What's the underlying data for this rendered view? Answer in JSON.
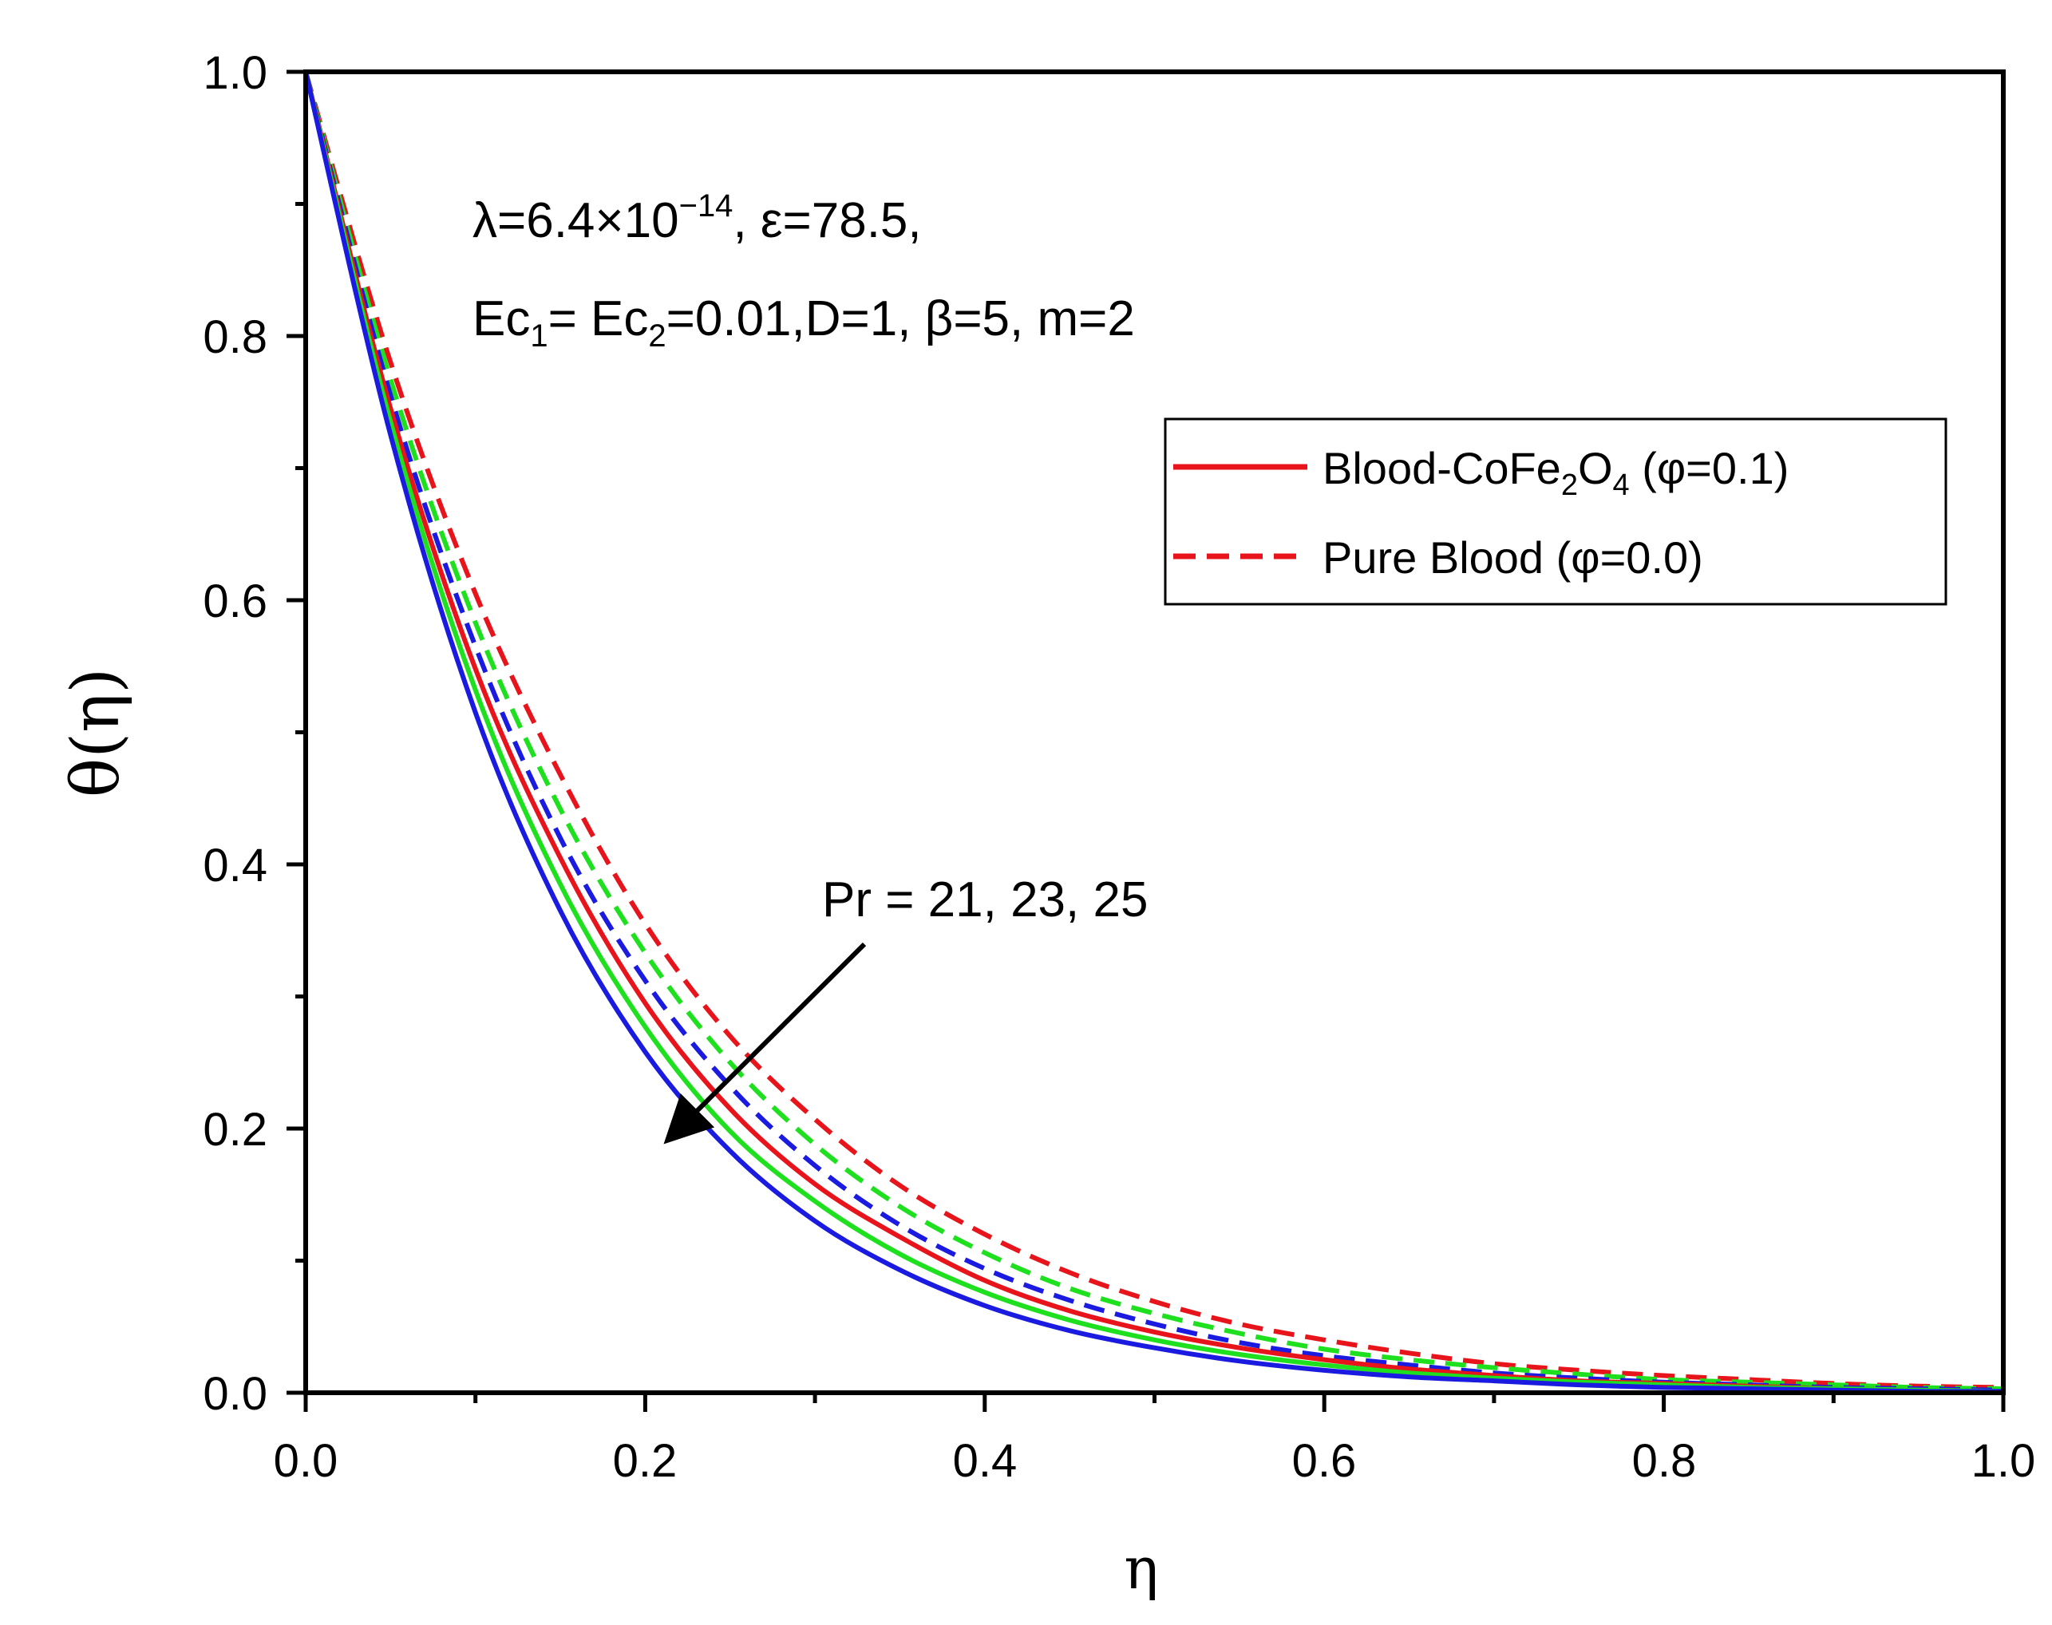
{
  "chart_data": {
    "type": "line",
    "xlabel": "η",
    "ylabel": "θ(η)",
    "xlim": [
      0,
      1
    ],
    "ylim": [
      0,
      1
    ],
    "xticks": [
      0.0,
      0.2,
      0.4,
      0.6,
      0.8,
      1.0
    ],
    "yticks": [
      0.0,
      0.2,
      0.4,
      0.6,
      0.8,
      1.0
    ],
    "xtick_labels": [
      "0.0",
      "0.2",
      "0.4",
      "0.6",
      "0.8",
      "1.0"
    ],
    "ytick_labels": [
      "0.0",
      "0.2",
      "0.4",
      "0.6",
      "0.8",
      "1.0"
    ],
    "grid": false,
    "parameters": {
      "line1": {
        "lambda_prefix": "λ=6.4×10",
        "lambda_exp": "−14",
        "eps": ", ε=78.5,"
      },
      "line2": {
        "ec": "Ec",
        "ec1_sub": "1",
        "mid": "= Ec",
        "ec2_sub": "2",
        "rest": "=0.01,D=1, β=5,  m=2"
      }
    },
    "arrow_label": "Pr = 21, 23, 25",
    "legend": {
      "placement": "top-right",
      "entries": [
        {
          "style": "solid",
          "color": "#e8141b",
          "label_parts": [
            "Blood-CoFe",
            "2",
            "O",
            "4",
            " (φ=0.1)"
          ]
        },
        {
          "style": "dashed",
          "color": "#e8141b",
          "label": "Pure Blood (φ=0.0)"
        }
      ]
    },
    "x": [
      0.0,
      0.05,
      0.1,
      0.15,
      0.2,
      0.25,
      0.3,
      0.35,
      0.4,
      0.45,
      0.5,
      0.55,
      0.6,
      0.65,
      0.7,
      0.75,
      0.8,
      0.85,
      0.9,
      0.95,
      1.0
    ],
    "series": [
      {
        "name": "Blood-CoFe2O4 (φ=0.1), Pr=21",
        "color": "#e8141b",
        "style": "solid",
        "values": [
          1.0,
          0.745,
          0.548,
          0.405,
          0.295,
          0.215,
          0.158,
          0.118,
          0.085,
          0.062,
          0.046,
          0.034,
          0.025,
          0.018,
          0.013,
          0.009,
          0.007,
          0.005,
          0.003,
          0.002,
          0.001
        ]
      },
      {
        "name": "Blood-CoFe2O4 (φ=0.1), Pr=23",
        "color": "#1fe01f",
        "style": "solid",
        "values": [
          1.0,
          0.735,
          0.532,
          0.385,
          0.277,
          0.198,
          0.145,
          0.105,
          0.076,
          0.055,
          0.04,
          0.029,
          0.021,
          0.015,
          0.011,
          0.008,
          0.006,
          0.004,
          0.003,
          0.002,
          0.001
        ]
      },
      {
        "name": "Blood-CoFe2O4 (φ=0.1), Pr=25",
        "color": "#1a1ae0",
        "style": "solid",
        "values": [
          1.0,
          0.725,
          0.515,
          0.365,
          0.258,
          0.183,
          0.13,
          0.093,
          0.066,
          0.047,
          0.034,
          0.024,
          0.017,
          0.012,
          0.009,
          0.006,
          0.004,
          0.003,
          0.002,
          0.001,
          0.001
        ]
      },
      {
        "name": "Pure Blood (φ=0.0), Pr=21",
        "color": "#e8141b",
        "style": "dashed",
        "values": [
          1.0,
          0.78,
          0.605,
          0.468,
          0.355,
          0.27,
          0.207,
          0.157,
          0.12,
          0.091,
          0.069,
          0.052,
          0.04,
          0.03,
          0.022,
          0.017,
          0.013,
          0.01,
          0.007,
          0.005,
          0.004
        ]
      },
      {
        "name": "Pure Blood (φ=0.0), Pr=23",
        "color": "#1fe01f",
        "style": "dashed",
        "values": [
          1.0,
          0.767,
          0.583,
          0.442,
          0.333,
          0.25,
          0.188,
          0.141,
          0.106,
          0.079,
          0.06,
          0.045,
          0.033,
          0.025,
          0.019,
          0.014,
          0.01,
          0.008,
          0.006,
          0.004,
          0.003
        ]
      },
      {
        "name": "Pure Blood (φ=0.0), Pr=25",
        "color": "#1a1ae0",
        "style": "dashed",
        "values": [
          1.0,
          0.755,
          0.565,
          0.42,
          0.312,
          0.232,
          0.172,
          0.127,
          0.094,
          0.07,
          0.052,
          0.038,
          0.028,
          0.021,
          0.015,
          0.011,
          0.008,
          0.006,
          0.004,
          0.003,
          0.002
        ]
      }
    ]
  }
}
